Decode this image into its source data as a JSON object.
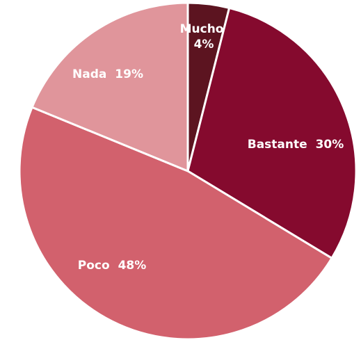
{
  "chart_data": {
    "type": "pie",
    "title": "",
    "start_angle_deg": 0,
    "direction": "clockwise",
    "legend": "none",
    "slices": [
      {
        "label": "Mucho",
        "value": 4,
        "value_text": "4%",
        "color": "#5c1420"
      },
      {
        "label": "Bastante",
        "value": 30,
        "value_text": "30%",
        "color": "#850a2e"
      },
      {
        "label": "Poco",
        "value": 48,
        "value_text": "48%",
        "color": "#d2616d"
      },
      {
        "label": "Nada",
        "value": 19,
        "value_text": "19%",
        "color": "#e0959b"
      }
    ]
  }
}
